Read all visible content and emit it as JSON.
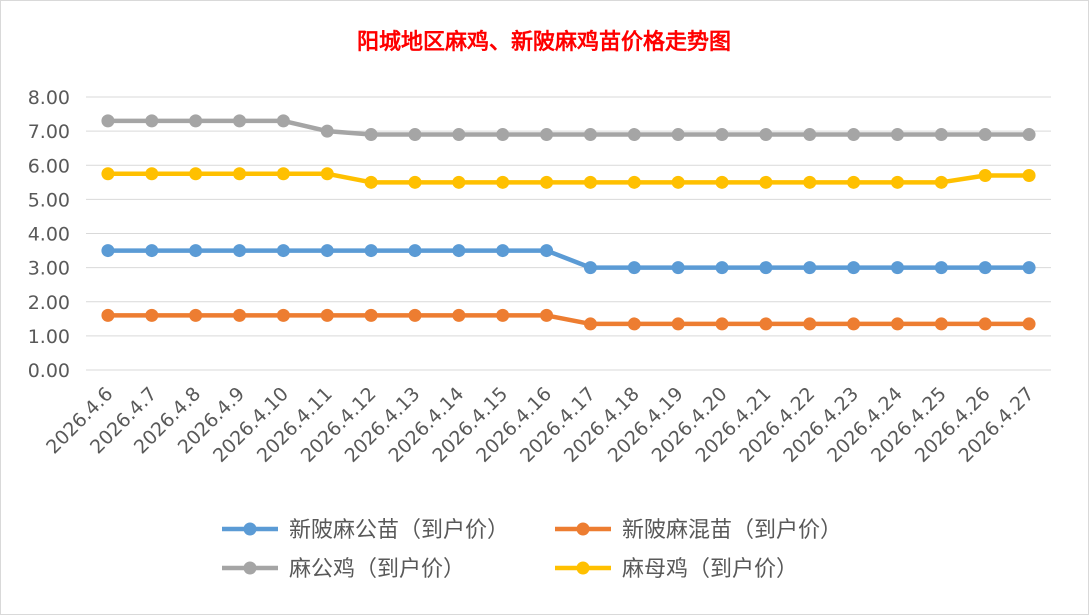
{
  "chart_data": {
    "type": "line",
    "title": "阳城地区麻鸡、新陂麻鸡苗价格走势图",
    "xlabel": "",
    "ylabel": "",
    "ylim": [
      0,
      8
    ],
    "yticks": [
      "0.00",
      "1.00",
      "2.00",
      "3.00",
      "4.00",
      "5.00",
      "6.00",
      "7.00",
      "8.00"
    ],
    "grid": true,
    "legend_position": "bottom",
    "categories": [
      "2026.4.6",
      "2026.4.7",
      "2026.4.8",
      "2026.4.9",
      "2026.4.10",
      "2026.4.11",
      "2026.4.12",
      "2026.4.13",
      "2026.4.14",
      "2026.4.15",
      "2026.4.16",
      "2026.4.17",
      "2026.4.18",
      "2026.4.19",
      "2026.4.20",
      "2026.4.21",
      "2026.4.22",
      "2026.4.23",
      "2026.4.24",
      "2026.4.25",
      "2026.4.26",
      "2026.4.27"
    ],
    "series": [
      {
        "name": "新陂麻公苗（到户价）",
        "color": "#5B9BD5",
        "values": [
          3.5,
          3.5,
          3.5,
          3.5,
          3.5,
          3.5,
          3.5,
          3.5,
          3.5,
          3.5,
          3.5,
          3.0,
          3.0,
          3.0,
          3.0,
          3.0,
          3.0,
          3.0,
          3.0,
          3.0,
          3.0,
          3.0
        ]
      },
      {
        "name": "新陂麻混苗（到户价）",
        "color": "#ED7D31",
        "values": [
          1.6,
          1.6,
          1.6,
          1.6,
          1.6,
          1.6,
          1.6,
          1.6,
          1.6,
          1.6,
          1.6,
          1.35,
          1.35,
          1.35,
          1.35,
          1.35,
          1.35,
          1.35,
          1.35,
          1.35,
          1.35,
          1.35
        ]
      },
      {
        "name": "麻公鸡（到户价）",
        "color": "#A5A5A5",
        "values": [
          7.3,
          7.3,
          7.3,
          7.3,
          7.3,
          7.0,
          6.9,
          6.9,
          6.9,
          6.9,
          6.9,
          6.9,
          6.9,
          6.9,
          6.9,
          6.9,
          6.9,
          6.9,
          6.9,
          6.9,
          6.9,
          6.9
        ]
      },
      {
        "name": "麻母鸡（到户价）",
        "color": "#FFC000",
        "values": [
          5.75,
          5.75,
          5.75,
          5.75,
          5.75,
          5.75,
          5.5,
          5.5,
          5.5,
          5.5,
          5.5,
          5.5,
          5.5,
          5.5,
          5.5,
          5.5,
          5.5,
          5.5,
          5.5,
          5.5,
          5.7,
          5.7
        ]
      }
    ],
    "title_color": "#FF0000",
    "gridline_color": "#D9D9D9",
    "text_color": "#595959"
  }
}
